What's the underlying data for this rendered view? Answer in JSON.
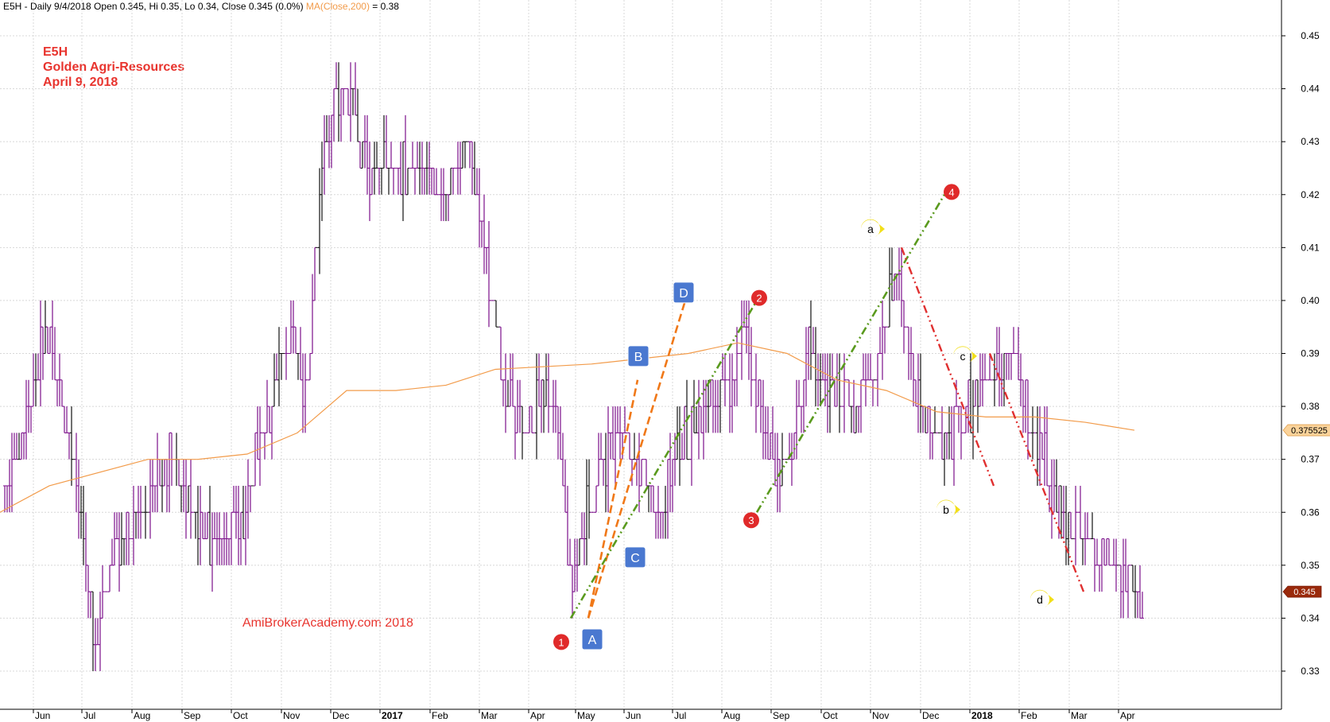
{
  "header": {
    "text": "E5H - Daily 9/4/2018 Open 0.345, Hi 0.35, Lo 0.34, Close 0.345 (0.0%)",
    "ma_label": "MA(Close,200)",
    "ma_value": "= 0.38"
  },
  "info": {
    "symbol": "E5H",
    "name": "Golden Agri-Resources",
    "date": "April 9, 2018"
  },
  "watermark": "AmiBrokerAcademy.com  2018",
  "colors": {
    "price_bar": "#7b0f8a",
    "price_bar_dark": "#111111",
    "ma_line": "#f29b4a",
    "grid": "#d8d8d8",
    "orange_dash": "#f07818",
    "green_dashdot": "#5a9a1e",
    "red_dashdot": "#e03030",
    "red_marker": "#e02a2a",
    "blue_marker": "#4a78d0",
    "yellow_marker": "#f2df1a"
  },
  "chart_data": {
    "type": "ohlc",
    "y_ticks": [
      "0.33",
      "0.34",
      "0.35",
      "0.36",
      "0.37",
      "0.38",
      "0.39",
      "0.40",
      "0.41",
      "0.42",
      "0.43",
      "0.44",
      "0.45"
    ],
    "ylim": [
      0.325,
      0.455
    ],
    "x_ticks": [
      "Jun",
      "Jul",
      "Aug",
      "Sep",
      "Oct",
      "Nov",
      "Dec",
      "2017",
      "Feb",
      "Mar",
      "Apr",
      "May",
      "Jun",
      "Jul",
      "Aug",
      "Sep",
      "Oct",
      "Nov",
      "Dec",
      "2018",
      "Feb",
      "Mar",
      "Apr"
    ],
    "price_path": [
      [
        "May 2016",
        0.365
      ],
      [
        "Jun 2016",
        0.395
      ],
      [
        "Jun 2016",
        0.375
      ],
      [
        "Jul 2016",
        0.335
      ],
      [
        "Jul 2016",
        0.355
      ],
      [
        "Aug 2016",
        0.36
      ],
      [
        "Aug 2016",
        0.37
      ],
      [
        "Sep 2016",
        0.355
      ],
      [
        "Oct 2016",
        0.36
      ],
      [
        "Oct 2016",
        0.38
      ],
      [
        "Nov 2016",
        0.395
      ],
      [
        "Nov 2016",
        0.38
      ],
      [
        "Nov 2016",
        0.43
      ],
      [
        "Dec 2016",
        0.44
      ],
      [
        "Dec 2016",
        0.425
      ],
      [
        "Jan 2017",
        0.425
      ],
      [
        "Feb 2017",
        0.42
      ],
      [
        "Feb 2017",
        0.43
      ],
      [
        "Mar 2017",
        0.4
      ],
      [
        "Mar 2017",
        0.375
      ],
      [
        "Apr 2017",
        0.38
      ],
      [
        "Apr 2017",
        0.385
      ],
      [
        "Apr 2017",
        0.37
      ],
      [
        "Apr 2017",
        0.345
      ],
      [
        "May 2017",
        0.36
      ],
      [
        "May 2017",
        0.375
      ],
      [
        "Jun 2017",
        0.37
      ],
      [
        "Jun 2017",
        0.36
      ],
      [
        "Jul 2017",
        0.375
      ],
      [
        "Jul 2017",
        0.38
      ],
      [
        "Aug 2017",
        0.385
      ],
      [
        "Aug 2017",
        0.395
      ],
      [
        "Aug 2017",
        0.375
      ],
      [
        "Sep 2017",
        0.365
      ],
      [
        "Sep 2017",
        0.39
      ],
      [
        "Oct 2017",
        0.38
      ],
      [
        "Oct 2017",
        0.38
      ],
      [
        "Nov 2017",
        0.39
      ],
      [
        "Nov 2017",
        0.405
      ],
      [
        "Nov 2017",
        0.385
      ],
      [
        "Dec 2017",
        0.375
      ],
      [
        "Dec 2017",
        0.375
      ],
      [
        "Jan 2018",
        0.385
      ],
      [
        "Jan 2018",
        0.39
      ],
      [
        "Feb 2018",
        0.38
      ],
      [
        "Feb 2018",
        0.36
      ],
      [
        "Mar 2018",
        0.355
      ],
      [
        "Mar 2018",
        0.35
      ],
      [
        "Apr 2018",
        0.345
      ]
    ],
    "ma_path": [
      [
        "May 2016",
        0.36
      ],
      [
        "Jun 2016",
        0.365
      ],
      [
        "Aug 2016",
        0.37
      ],
      [
        "Sep 2016",
        0.37
      ],
      [
        "Oct 2016",
        0.371
      ],
      [
        "Nov 2016",
        0.375
      ],
      [
        "Dec 2016",
        0.383
      ],
      [
        "Jan 2017",
        0.383
      ],
      [
        "Feb 2017",
        0.384
      ],
      [
        "Mar 2017",
        0.387
      ],
      [
        "May 2017",
        0.388
      ],
      [
        "Jul 2017",
        0.39
      ],
      [
        "Aug 2017",
        0.392
      ],
      [
        "Sep 2017",
        0.39
      ],
      [
        "Oct 2017",
        0.385
      ],
      [
        "Nov 2017",
        0.383
      ],
      [
        "Dec 2017",
        0.379
      ],
      [
        "Jan 2018",
        0.378
      ],
      [
        "Feb 2018",
        0.378
      ],
      [
        "Mar 2018",
        0.377
      ],
      [
        "Apr 2018",
        0.3755
      ]
    ],
    "price_tags": [
      {
        "label": "0.375525",
        "value": 0.3755,
        "style": "ma"
      },
      {
        "label": "0.345",
        "value": 0.345,
        "style": "close"
      }
    ],
    "markers": [
      {
        "label": "1",
        "shape": "circle",
        "color": "red",
        "x": "Apr 2017",
        "value": 0.3355
      },
      {
        "label": "2",
        "shape": "circle",
        "color": "red",
        "x": "Aug 2017",
        "value": 0.4005
      },
      {
        "label": "3",
        "shape": "circle",
        "color": "red",
        "x": "Aug 2017",
        "value": 0.3585
      },
      {
        "label": "4",
        "shape": "circle",
        "color": "red",
        "x": "Nov 2017",
        "value": 0.4205
      },
      {
        "label": "A",
        "shape": "square",
        "color": "blue",
        "x": "May 2017",
        "value": 0.336
      },
      {
        "label": "B",
        "shape": "square",
        "color": "blue",
        "x": "Jun 2017",
        "value": 0.3895
      },
      {
        "label": "C",
        "shape": "square",
        "color": "blue",
        "x": "Jun 2017",
        "value": 0.3515
      },
      {
        "label": "D",
        "shape": "square",
        "color": "blue",
        "x": "Jun 2017",
        "value": 0.4015
      },
      {
        "label": "a",
        "shape": "callout",
        "color": "yellow",
        "x": "Nov 2017",
        "value": 0.4135
      },
      {
        "label": "b",
        "shape": "callout",
        "color": "yellow",
        "x": "Dec 2017",
        "value": 0.3605
      },
      {
        "label": "c",
        "shape": "callout",
        "color": "yellow",
        "x": "Dec 2017",
        "value": 0.3895
      },
      {
        "label": "d",
        "shape": "callout",
        "color": "yellow",
        "x": "Feb 2018",
        "value": 0.3435
      }
    ],
    "trend_lines": [
      {
        "style": "orange-dash",
        "from": [
          "May 2017",
          0.34
        ],
        "to": [
          "Jun 2017",
          0.385
        ]
      },
      {
        "style": "orange-dash",
        "from": [
          "May 2017",
          0.34
        ],
        "to": [
          "Jun 2017",
          0.4
        ]
      },
      {
        "style": "green-dashdot",
        "from": [
          "Apr 2017",
          0.34
        ],
        "to": [
          "Aug 2017",
          0.4
        ]
      },
      {
        "style": "green-dashdot",
        "from": [
          "Aug 2017",
          0.36
        ],
        "to": [
          "Nov 2017",
          0.42
        ]
      },
      {
        "style": "red-dashdot",
        "from": [
          "Nov 2017",
          0.41
        ],
        "to": [
          "Dec 2017",
          0.365
        ]
      },
      {
        "style": "red-dashdot",
        "from": [
          "Jan 2018",
          0.39
        ],
        "to": [
          "Feb 2018",
          0.345
        ]
      }
    ]
  }
}
